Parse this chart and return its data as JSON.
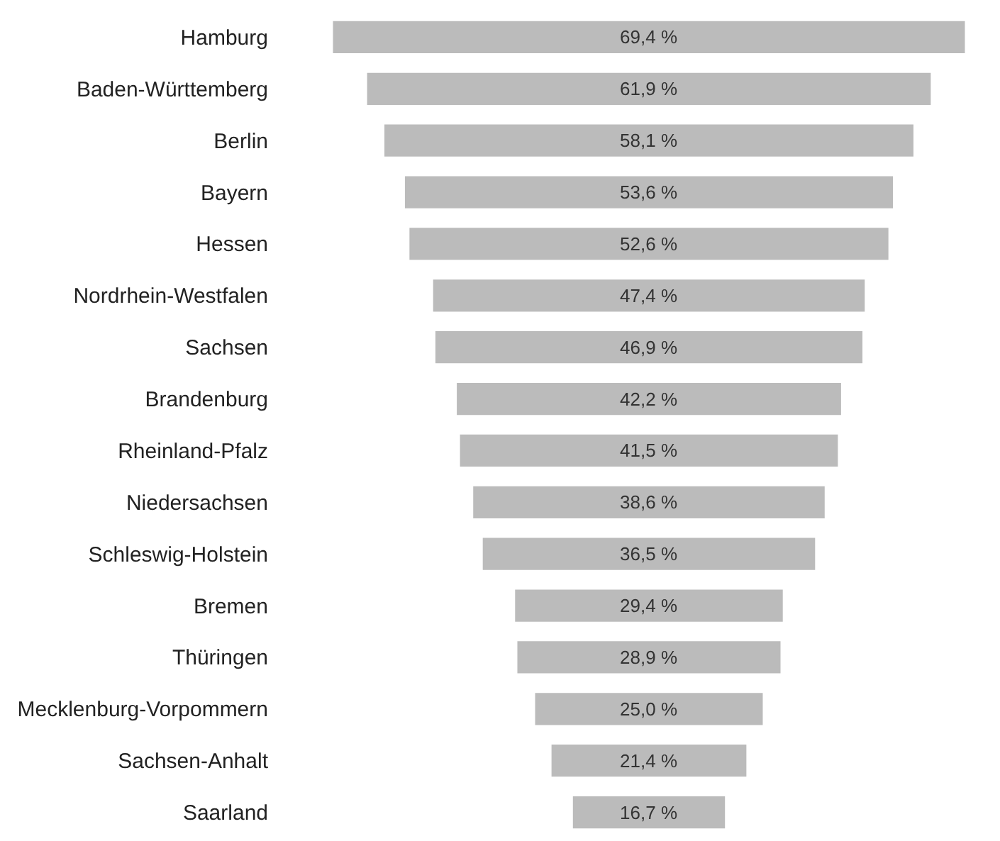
{
  "chart_data": {
    "type": "other",
    "categories": [
      "Hamburg",
      "Baden-Württemberg",
      "Berlin",
      "Bayern",
      "Hessen",
      "Nordrhein-Westfalen",
      "Sachsen",
      "Brandenburg",
      "Rheinland-Pfalz",
      "Niedersachsen",
      "Schleswig-Holstein",
      "Bremen",
      "Thüringen",
      "Mecklenburg-Vorpommern",
      "Sachsen-Anhalt",
      "Saarland"
    ],
    "values": [
      69.4,
      61.9,
      58.1,
      53.6,
      52.6,
      47.4,
      46.9,
      42.2,
      41.5,
      38.6,
      36.5,
      29.4,
      28.9,
      25.0,
      21.4,
      16.7
    ],
    "value_labels": [
      "69,4 %",
      "61,9 %",
      "58,1 %",
      "53,6 %",
      "52,6 %",
      "47,4 %",
      "46,9 %",
      "42,2 %",
      "41,5 %",
      "38,6 %",
      "36,5 %",
      "29,4 %",
      "28,9 %",
      "25,0 %",
      "21,4 %",
      "16,7 %"
    ],
    "color": "#bbbbbb"
  }
}
